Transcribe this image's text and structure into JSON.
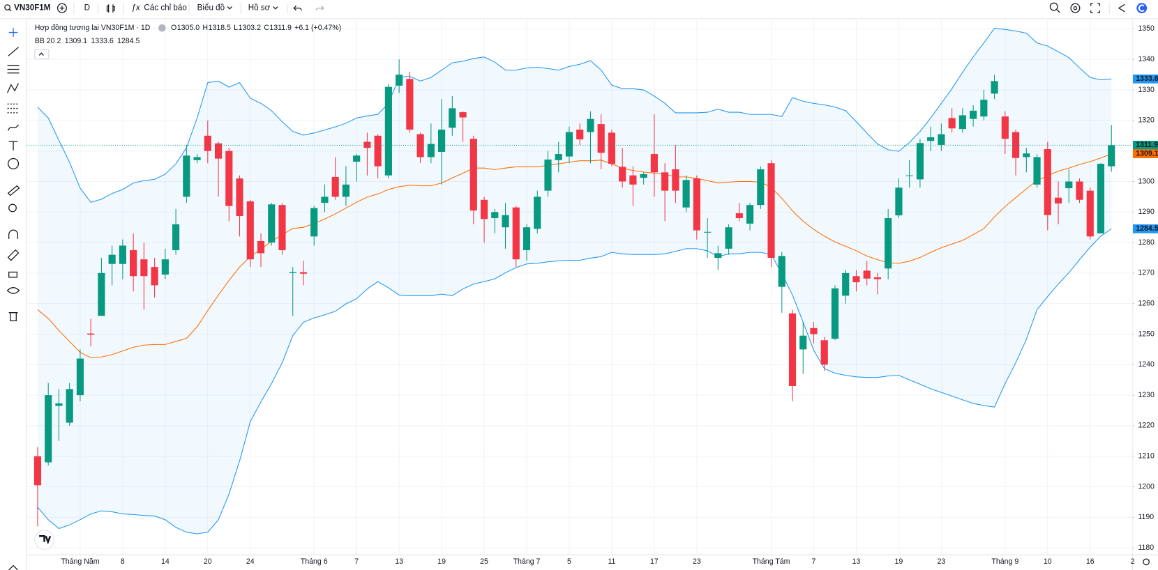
{
  "toolbar": {
    "symbol": "VN30F1M",
    "interval": "D",
    "indicators": "Các chỉ báo",
    "chart_type": "Biểu đồ",
    "profile": "Hồ sơ"
  },
  "chart_data": {
    "type": "candlestick",
    "title": "Hợp đồng tương lai VN30F1M · 1D",
    "ohlc_legend": [
      {
        "label": "O",
        "value": "1305.0"
      },
      {
        "label": "H",
        "value": "1318.5"
      },
      {
        "label": "L",
        "value": "1303.2"
      },
      {
        "label": "C",
        "value": "1311.9"
      }
    ],
    "change": "+6.1 (+0.47%)",
    "indicator_name": "BB 20 2",
    "up_color": "#089981",
    "down_color": "#f23645",
    "open": [
      1210,
      1208,
      1226.5,
      1221,
      1230,
      1250.2,
      1256,
      1273,
      1273,
      1277.5,
      1274.5,
      1272,
      1269.5,
      1277.5,
      1295,
      1307,
      1315,
      1312.5,
      1310,
      1301,
      1293.5,
      1280.5,
      1280,
      1292.3,
      1270,
      1270.3,
      1282,
      1293,
      1301.5,
      1295,
      1306.5,
      1313,
      1315,
      1302,
      1331.4,
      1333.6,
      1315.5,
      1308,
      1309.7,
      1317.6,
      1322.7,
      1314,
      1294,
      1288,
      1285,
      1291.5,
      1277.5,
      1284.5,
      1297,
      1307,
      1308.2,
      1317,
      1316.2,
      1318.8,
      1316,
      1304.8,
      1302,
      1301.2,
      1309,
      1303,
      1304,
      1291.5,
      1301,
      1283.3,
      1275,
      1278,
      1289.6,
      1286.2,
      1292.3,
      1306,
      1265.5,
      1256.8,
      1245,
      1252,
      1248,
      1248.5,
      1262.6,
      1269,
      1270.8,
      1268.6,
      1271.5,
      1288.9,
      1301.8,
      1300.7,
      1313.3,
      1312,
      1320.8,
      1317.2,
      1320.5,
      1321.3,
      1328.8,
      1321.3,
      1316.2,
      1308,
      1299,
      1310.6,
      1294.7,
      1297.8,
      1300,
      1297,
      1283,
      1305
    ],
    "high": [
      1213,
      1234,
      1232,
      1234,
      1245,
      1255,
      1275,
      1279,
      1281,
      1283,
      1280,
      1275,
      1278,
      1291,
      1312,
      1309,
      1320,
      1313,
      1311,
      1302,
      1294,
      1283,
      1293,
      1293,
      1272,
      1274,
      1292,
      1299,
      1308,
      1305,
      1309,
      1316,
      1315.5,
      1332,
      1340,
      1336,
      1316,
      1319,
      1327,
      1328,
      1323,
      1315,
      1295,
      1291,
      1293,
      1292,
      1286,
      1297,
      1310,
      1313,
      1318,
      1319,
      1323,
      1322,
      1317,
      1311,
      1305,
      1303,
      1322,
      1306,
      1312,
      1302,
      1302,
      1288,
      1279,
      1286,
      1293,
      1293,
      1305,
      1307,
      1277,
      1258,
      1254,
      1254,
      1249,
      1266,
      1271,
      1271,
      1274,
      1270,
      1291,
      1301,
      1307,
      1314,
      1318,
      1319,
      1324,
      1324,
      1325,
      1330,
      1335,
      1323,
      1317,
      1311,
      1309,
      1313,
      1300,
      1304,
      1301,
      1298,
      1306,
      1318.5
    ],
    "low": [
      1187,
      1207,
      1215,
      1220,
      1228,
      1246,
      1256,
      1266,
      1268,
      1264,
      1258,
      1262,
      1268,
      1276,
      1293,
      1306,
      1306,
      1295,
      1287,
      1282,
      1272,
      1272,
      1279,
      1276,
      1256,
      1266,
      1279,
      1290,
      1294,
      1292,
      1300,
      1302,
      1301,
      1301,
      1329,
      1316,
      1306,
      1306,
      1299,
      1315,
      1313,
      1286,
      1280,
      1283,
      1278,
      1272,
      1274,
      1283,
      1295,
      1303,
      1306,
      1312,
      1306,
      1304,
      1305,
      1298,
      1292,
      1299,
      1295,
      1287,
      1293,
      1290,
      1281,
      1275,
      1271,
      1276,
      1287,
      1284,
      1291,
      1272,
      1257,
      1228,
      1237,
      1247,
      1238,
      1248,
      1260,
      1264,
      1266,
      1263,
      1268,
      1288,
      1298,
      1298,
      1310,
      1310,
      1316,
      1316,
      1318,
      1320,
      1327,
      1309,
      1302,
      1303,
      1298,
      1284,
      1286,
      1293,
      1293,
      1281,
      1283,
      1303.2
    ],
    "close": [
      1200.5,
      1230,
      1227.3,
      1232,
      1242,
      1249.8,
      1270,
      1276,
      1279,
      1269,
      1269,
      1266,
      1274.5,
      1286,
      1308.5,
      1308,
      1310,
      1307.5,
      1292,
      1288.7,
      1274.5,
      1276.5,
      1292.5,
      1277.5,
      1270.3,
      1269.8,
      1291.3,
      1295,
      1295,
      1299,
      1308.5,
      1311,
      1305,
      1331,
      1335,
      1317,
      1308,
      1312.3,
      1317,
      1324,
      1321,
      1290.5,
      1287.7,
      1290,
      1289,
      1274.5,
      1285,
      1295,
      1307.2,
      1309,
      1316.2,
      1313.8,
      1320.5,
      1309.4,
      1305.8,
      1300,
      1299,
      1302.4,
      1303,
      1297,
      1297,
      1300.5,
      1284,
      1283.5,
      1276.5,
      1285,
      1288,
      1292.3,
      1304,
      1275,
      1275.6,
      1233,
      1249.5,
      1250,
      1240,
      1265,
      1270,
      1267,
      1268.2,
      1268,
      1288,
      1298,
      1302,
      1312.6,
      1314.5,
      1315.5,
      1317.4,
      1321.7,
      1323.2,
      1326.8,
      1332.9,
      1314,
      1307.7,
      1309.2,
      1308,
      1289,
      1292.8,
      1300,
      1294,
      1282,
      1305.8,
      1311.9
    ],
    "series": [
      {
        "color": "#ff6d00",
        "values": [
          1258.0,
          1255.1,
          1251.2,
          1247.6,
          1244.0,
          1242.3,
          1242.5,
          1243.3,
          1244.5,
          1245.7,
          1246.4,
          1246.6,
          1246.6,
          1247.6,
          1248.6,
          1252.4,
          1257.7,
          1262.8,
          1267.6,
          1272.0,
          1275.4,
          1277.8,
          1280.4,
          1282.6,
          1284.6,
          1285.0,
          1286.2,
          1287.7,
          1289.4,
          1291.3,
          1293.2,
          1294.9,
          1295.9,
          1297.4,
          1298.3,
          1298.8,
          1298.6,
          1298.6,
          1299.5,
          1301.2,
          1302.7,
          1304.4,
          1304.4,
          1303.9,
          1304.4,
          1304.8,
          1304.8,
          1304.8,
          1305.3,
          1305.8,
          1306.3,
          1306.8,
          1306.8,
          1307.0,
          1305.8,
          1304.4,
          1303.6,
          1303.1,
          1302.7,
          1302.4,
          1301.5,
          1301.5,
          1301.0,
          1300.3,
          1299.5,
          1299.8,
          1300.0,
          1300.0,
          1299.8,
          1298.1,
          1294.5,
          1290.4,
          1287.0,
          1284.3,
          1282.1,
          1280.2,
          1278.8,
          1277.3,
          1275.6,
          1274.4,
          1273.4,
          1273.2,
          1273.9,
          1275.1,
          1276.8,
          1278.3,
          1279.5,
          1280.7,
          1282.6,
          1284.6,
          1288.4,
          1291.8,
          1294.7,
          1297.6,
          1300.3,
          1301.9,
          1303.4,
          1304.4,
          1305.6,
          1306.5,
          1307.7,
          1309.1
        ]
      },
      {
        "color": "#2196f3",
        "values": [
          1324.4,
          1320.8,
          1313.5,
          1306.3,
          1297.8,
          1293.2,
          1294.2,
          1296.1,
          1297.4,
          1299.5,
          1300.3,
          1300.7,
          1302.4,
          1305.8,
          1311.1,
          1320.8,
          1332.4,
          1332.9,
          1330.9,
          1332.4,
          1327.3,
          1325.6,
          1323.2,
          1319.6,
          1316.4,
          1315.2,
          1315.9,
          1316.9,
          1317.9,
          1319.1,
          1320.8,
          1321.5,
          1322.0,
          1325.6,
          1334.1,
          1334.5,
          1332.9,
          1334.1,
          1336.5,
          1338.9,
          1339.4,
          1340.3,
          1340.8,
          1339.1,
          1336.5,
          1336.5,
          1337.2,
          1337.4,
          1337.0,
          1336.5,
          1337.7,
          1338.4,
          1339.6,
          1336.5,
          1331.6,
          1330.4,
          1330.4,
          1330.0,
          1328.0,
          1325.6,
          1322.5,
          1322.5,
          1322.5,
          1322.7,
          1323.7,
          1322.7,
          1322.7,
          1322.0,
          1322.0,
          1322.0,
          1321.3,
          1327.5,
          1326.3,
          1325.6,
          1325.1,
          1324.4,
          1323.2,
          1319.6,
          1315.9,
          1312.3,
          1310.4,
          1309.9,
          1312.8,
          1316.4,
          1320.8,
          1325.6,
          1330.4,
          1335.8,
          1340.8,
          1345.4,
          1350.2,
          1349.8,
          1349.3,
          1348.6,
          1345.4,
          1344.4,
          1342.5,
          1340.6,
          1337.2,
          1334.1,
          1333.3,
          1333.6
        ]
      },
      {
        "color": "#2196f3",
        "values": [
          1193.3,
          1189.2,
          1186.3,
          1187.5,
          1189.2,
          1191.1,
          1192.1,
          1191.8,
          1191.1,
          1190.9,
          1190.6,
          1190.4,
          1189.2,
          1186.7,
          1185.1,
          1184.6,
          1185.1,
          1189.2,
          1197.6,
          1208.5,
          1221.3,
          1227.8,
          1233.8,
          1240.6,
          1249.5,
          1253.9,
          1255.3,
          1256.3,
          1257.5,
          1259.9,
          1261.6,
          1264.8,
          1267.2,
          1265.2,
          1262.8,
          1262.6,
          1262.6,
          1262.6,
          1263.1,
          1262.6,
          1264.8,
          1266.4,
          1267.2,
          1268.1,
          1270.1,
          1271.8,
          1273.0,
          1273.2,
          1273.7,
          1274.0,
          1274.2,
          1274.2,
          1274.9,
          1275.4,
          1276.8,
          1276.3,
          1276.1,
          1276.1,
          1276.1,
          1276.3,
          1277.1,
          1278.0,
          1278.0,
          1277.3,
          1275.4,
          1276.3,
          1276.3,
          1276.8,
          1276.8,
          1276.1,
          1269.8,
          1262.8,
          1253.9,
          1244.7,
          1238.7,
          1237.2,
          1236.5,
          1236.0,
          1235.8,
          1235.8,
          1236.3,
          1236.5,
          1235.0,
          1233.6,
          1232.1,
          1230.9,
          1229.7,
          1228.5,
          1227.3,
          1226.6,
          1226.1,
          1233.8,
          1240.6,
          1248.3,
          1258.0,
          1262.3,
          1266.4,
          1270.1,
          1274.4,
          1278.5,
          1282.1,
          1284.5
        ]
      }
    ],
    "band_fill": "#2196f3",
    "last_price_line": true,
    "grid": true,
    "xlim": [
      -1.04,
      102.95
    ],
    "xticks": [
      {
        "value": 4,
        "label": "Tháng Năm"
      },
      {
        "value": 8,
        "label": "8"
      },
      {
        "value": 12,
        "label": "14"
      },
      {
        "value": 16,
        "label": "20"
      },
      {
        "value": 20,
        "label": "24"
      },
      {
        "value": 26,
        "label": "Tháng 6"
      },
      {
        "value": 30,
        "label": "7"
      },
      {
        "value": 34,
        "label": "13"
      },
      {
        "value": 38,
        "label": "19"
      },
      {
        "value": 42,
        "label": "25"
      },
      {
        "value": 46,
        "label": "Tháng 7"
      },
      {
        "value": 50,
        "label": "5"
      },
      {
        "value": 54,
        "label": "11"
      },
      {
        "value": 58,
        "label": "17"
      },
      {
        "value": 62,
        "label": "23"
      },
      {
        "value": 69,
        "label": "Tháng Tám"
      },
      {
        "value": 73,
        "label": "7"
      },
      {
        "value": 77,
        "label": "13"
      },
      {
        "value": 81,
        "label": "19"
      },
      {
        "value": 85,
        "label": "23"
      },
      {
        "value": 91,
        "label": "Tháng 9"
      },
      {
        "value": 95,
        "label": "10"
      },
      {
        "value": 99,
        "label": "16"
      },
      {
        "value": 103,
        "label": "2"
      }
    ],
    "ylim": [
      1177.8,
      1352.7
    ],
    "yticks": [
      1180,
      1190,
      1200,
      1210,
      1220,
      1230,
      1240,
      1250,
      1260,
      1270,
      1280,
      1290,
      1300,
      1310,
      1320,
      1330,
      1340,
      1350
    ]
  }
}
